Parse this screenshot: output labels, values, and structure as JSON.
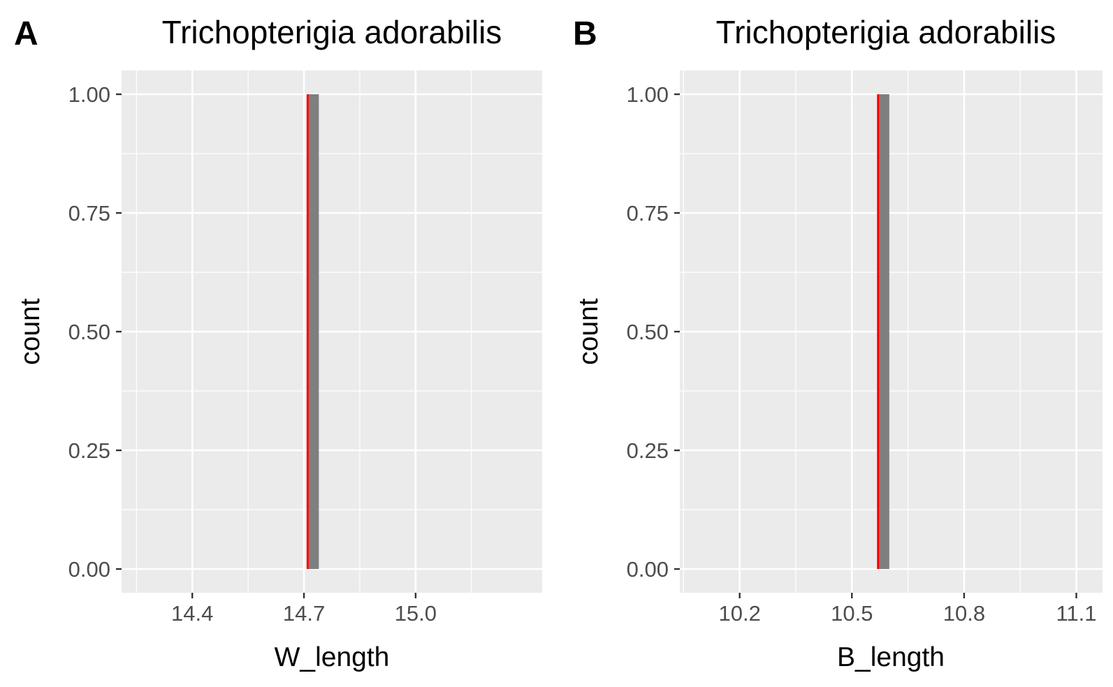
{
  "chart_data": [
    {
      "panel_label": "A",
      "type": "histogram",
      "title": "Trichopterigia adorabilis",
      "xlabel": "W_length",
      "ylabel": "count",
      "xlim": [
        14.21,
        15.34
      ],
      "ylim": [
        -0.05,
        1.05
      ],
      "x_ticks": [
        14.4,
        14.7,
        15.0
      ],
      "x_tick_labels": [
        "14.4",
        "14.7",
        "15.0"
      ],
      "y_ticks": [
        0,
        0.25,
        0.5,
        0.75,
        1
      ],
      "y_tick_labels": [
        "0.00",
        "0.25",
        "0.50",
        "0.75",
        "1.00"
      ],
      "bins": [
        {
          "x_start": 14.71,
          "x_end": 14.74,
          "count": 1
        }
      ],
      "vline": {
        "x": 14.71,
        "color": "#ff0000"
      },
      "grid": true
    },
    {
      "panel_label": "B",
      "type": "histogram",
      "title": "Trichopterigia adorabilis",
      "xlabel": "B_length",
      "ylabel": "count",
      "xlim": [
        10.04,
        11.17
      ],
      "ylim": [
        -0.05,
        1.05
      ],
      "x_ticks": [
        10.2,
        10.5,
        10.8,
        11.1
      ],
      "x_tick_labels": [
        "10.2",
        "10.5",
        "10.8",
        "11.1"
      ],
      "y_ticks": [
        0,
        0.25,
        0.5,
        0.75,
        1
      ],
      "y_tick_labels": [
        "0.00",
        "0.25",
        "0.50",
        "0.75",
        "1.00"
      ],
      "bins": [
        {
          "x_start": 10.57,
          "x_end": 10.6,
          "count": 1
        }
      ],
      "vline": {
        "x": 10.57,
        "color": "#ff0000"
      },
      "grid": true
    }
  ],
  "colors": {
    "panel_background": "#ebebeb",
    "grid": "#ffffff",
    "bar_fill": "#7f7f7f",
    "axis_text": "#4d4d4d",
    "tick_mark": "#333333",
    "title_text": "#000000"
  }
}
